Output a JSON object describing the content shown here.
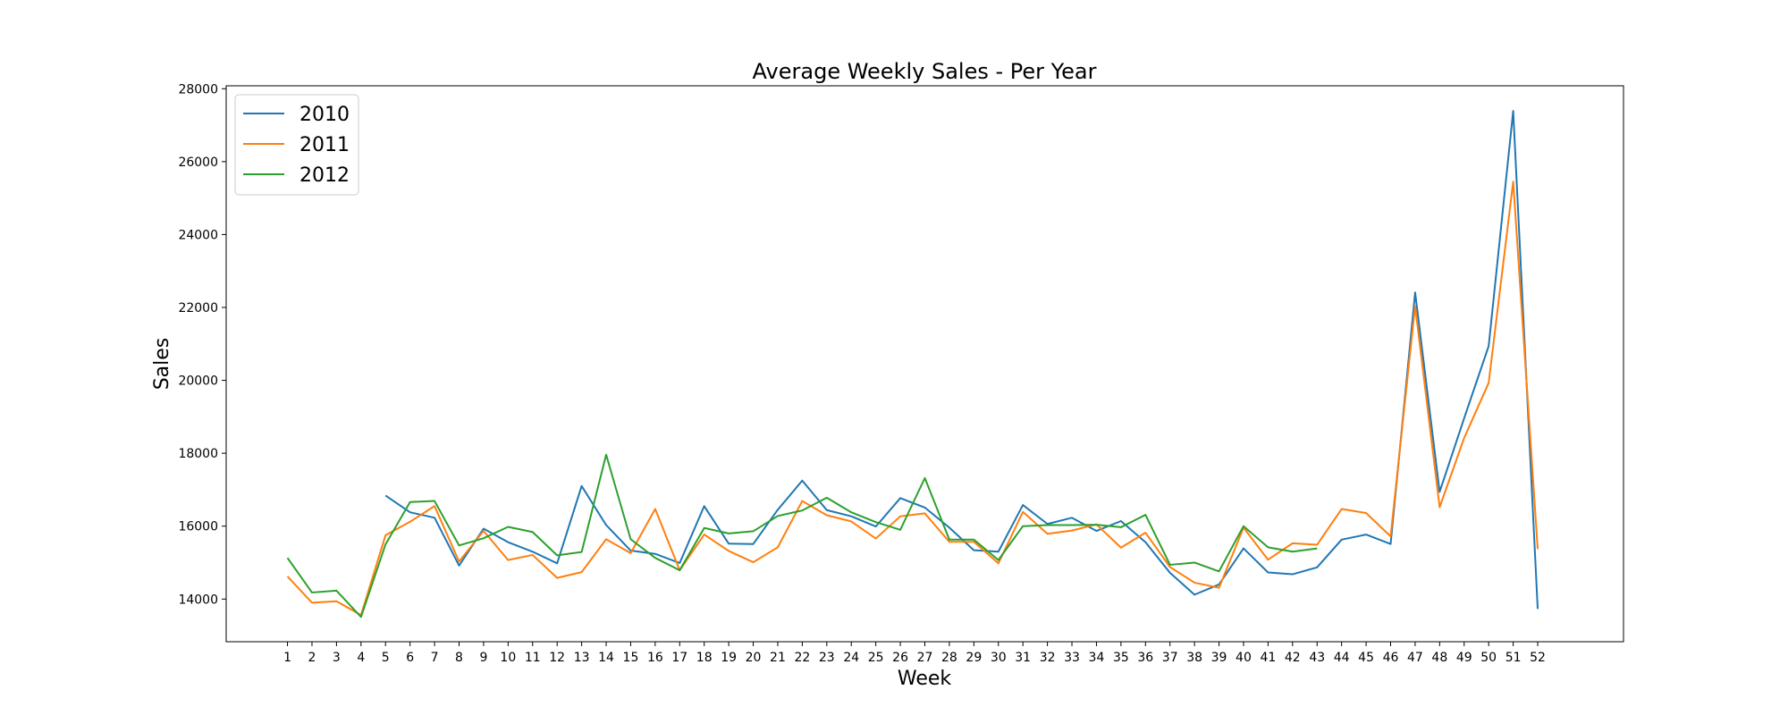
{
  "chart_data": {
    "type": "line",
    "title": "Average Weekly Sales - Per Year",
    "xlabel": "Week",
    "ylabel": "Sales",
    "x": [
      1,
      2,
      3,
      4,
      5,
      6,
      7,
      8,
      9,
      10,
      11,
      12,
      13,
      14,
      15,
      16,
      17,
      18,
      19,
      20,
      21,
      22,
      23,
      24,
      25,
      26,
      27,
      28,
      29,
      30,
      31,
      32,
      33,
      34,
      35,
      36,
      37,
      38,
      39,
      40,
      41,
      42,
      43,
      44,
      45,
      46,
      47,
      48,
      49,
      50,
      51,
      52
    ],
    "xlim": [
      -1.5,
      55.5
    ],
    "ylim": [
      12830,
      28080
    ],
    "yticks": [
      14000,
      16000,
      18000,
      20000,
      22000,
      24000,
      26000,
      28000
    ],
    "legend_position": "top-left",
    "grid": false,
    "series": [
      {
        "name": "2010",
        "color": "#1f77b4",
        "values": [
          null,
          null,
          null,
          null,
          16840,
          16380,
          16230,
          14920,
          15930,
          15560,
          15300,
          14980,
          17100,
          16030,
          15330,
          15240,
          14990,
          16550,
          15520,
          15510,
          16450,
          17250,
          16440,
          16270,
          15990,
          16770,
          16510,
          15960,
          15340,
          15300,
          16580,
          16060,
          16230,
          15870,
          16140,
          15560,
          14720,
          14120,
          14400,
          15390,
          14730,
          14680,
          14870,
          15630,
          15770,
          15510,
          22410,
          16940,
          18960,
          20940,
          27390,
          13730
        ]
      },
      {
        "name": "2011",
        "color": "#ff7f0e",
        "values": [
          14620,
          13900,
          13940,
          13560,
          15750,
          16120,
          16550,
          15030,
          15870,
          15070,
          15210,
          14580,
          14740,
          15640,
          15260,
          16470,
          14790,
          15770,
          15320,
          15010,
          15420,
          16690,
          16300,
          16130,
          15660,
          16270,
          16350,
          15570,
          15570,
          14980,
          16390,
          15790,
          15880,
          16050,
          15410,
          15820,
          14880,
          14450,
          14310,
          15960,
          15080,
          15530,
          15490,
          16470,
          16360,
          15720,
          22040,
          16520,
          18420,
          19930,
          25450,
          15370
        ]
      },
      {
        "name": "2012",
        "color": "#2ca02c",
        "values": [
          15130,
          14180,
          14230,
          13510,
          15500,
          16660,
          16690,
          15470,
          15670,
          15980,
          15840,
          15200,
          15290,
          17960,
          15640,
          15130,
          14790,
          15950,
          15800,
          15860,
          16280,
          16430,
          16780,
          16380,
          16110,
          15900,
          17320,
          15630,
          15630,
          15070,
          16000,
          16030,
          16030,
          16040,
          15970,
          16310,
          14940,
          15000,
          14760,
          16000,
          15420,
          15300,
          15390,
          null,
          null,
          null,
          null,
          null,
          null,
          null,
          null,
          null
        ]
      }
    ]
  }
}
